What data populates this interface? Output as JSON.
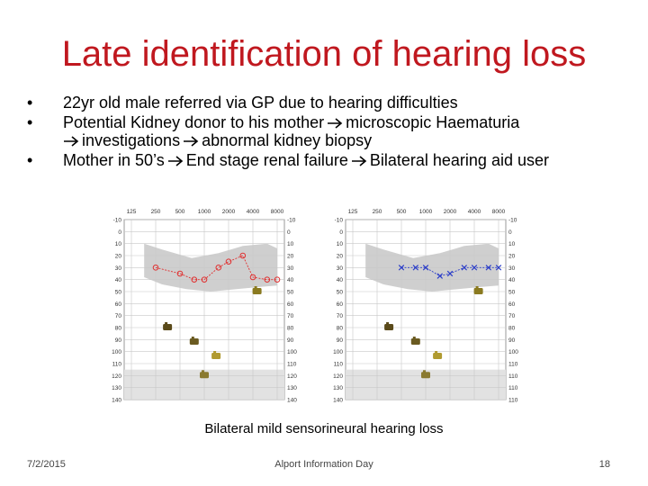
{
  "slide": {
    "title": "Late identification of hearing loss",
    "bullets": [
      {
        "parts": [
          "22yr old male referred via GP due to hearing difficulties"
        ]
      },
      {
        "parts": [
          "Potential Kidney donor to his mother",
          "microscopic Haematuria",
          "investigations",
          "abnormal kidney biopsy"
        ]
      },
      {
        "parts": [
          "Mother in 50’s",
          "End stage renal failure",
          "Bilateral hearing aid user"
        ]
      }
    ],
    "caption": "Bilateral mild sensorineural hearing loss",
    "footer": {
      "date": "7/2/2015",
      "center": "Alport Information Day",
      "page": "18"
    }
  },
  "audiograms": {
    "frequencies": [
      "125",
      "250",
      "500",
      "1000",
      "2000",
      "4000",
      "8000"
    ],
    "db_levels": [
      "-10",
      "0",
      "10",
      "20",
      "30",
      "40",
      "50",
      "60",
      "70",
      "80",
      "90",
      "100",
      "110",
      "120",
      "130",
      "140"
    ],
    "left": {
      "right_labels": [
        "-10",
        "0",
        "10",
        "20",
        "30",
        "40",
        "50",
        "60",
        "70",
        "80",
        "90",
        "100",
        "110",
        "120",
        "130",
        "140"
      ],
      "symbol": "circle",
      "color": "#e03030",
      "points": [
        [
          250,
          30
        ],
        [
          500,
          35
        ],
        [
          750,
          40
        ],
        [
          1000,
          40
        ],
        [
          1500,
          30
        ],
        [
          2000,
          25
        ],
        [
          3000,
          20
        ],
        [
          4000,
          38
        ],
        [
          6000,
          40
        ],
        [
          8000,
          40
        ]
      ]
    },
    "right": {
      "right_labels": [
        "-10",
        "0",
        "10",
        "20",
        "30",
        "40",
        "50",
        "60",
        "70",
        "80",
        "90",
        "100",
        "110",
        "110",
        "110",
        "110"
      ],
      "symbol": "cross",
      "color": "#2a3cc8",
      "points": [
        [
          500,
          30
        ],
        [
          750,
          30
        ],
        [
          1000,
          30
        ],
        [
          1500,
          37
        ],
        [
          2000,
          35
        ],
        [
          3000,
          30
        ],
        [
          4000,
          30
        ],
        [
          6000,
          30
        ],
        [
          8000,
          30
        ]
      ]
    }
  }
}
